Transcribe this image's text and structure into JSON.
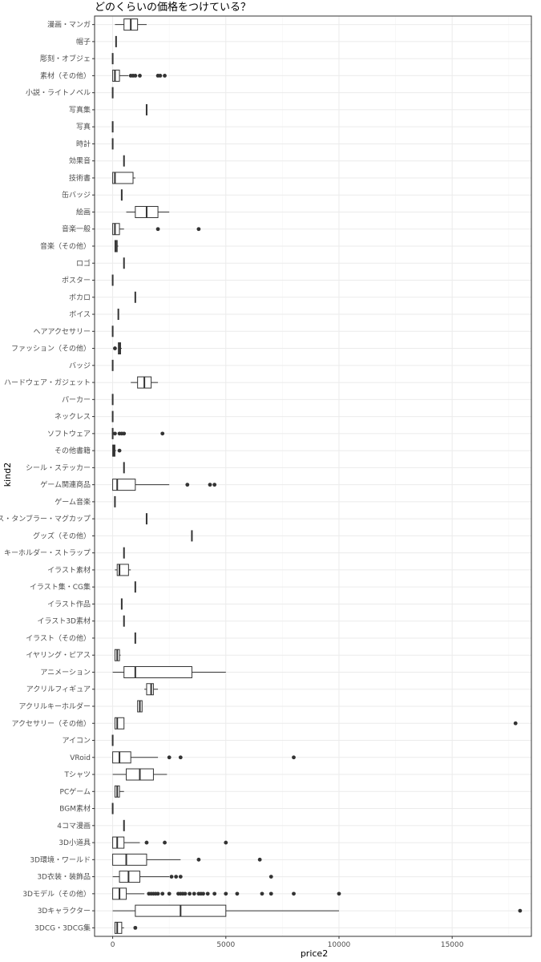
{
  "chart_data": {
    "type": "boxplot",
    "title": "どのくらいの価格をつけている？",
    "xlabel": "price2",
    "ylabel": "kind2",
    "xlim": [
      -800,
      18500
    ],
    "x_ticks": [
      0,
      5000,
      10000,
      15000
    ],
    "grid": true,
    "theme": "bw",
    "colors": {
      "box_fill": "#ffffff",
      "box_line": "#333333",
      "outlier": "#333333",
      "grid_major": "#ebebeb",
      "grid_minor": "#f5f5f5",
      "panel_border": "#333333"
    },
    "categories": [
      {
        "label": "漫画・マンガ",
        "min": 100,
        "q1": 500,
        "median": 800,
        "q3": 1100,
        "max": 1500,
        "outliers": []
      },
      {
        "label": "帽子",
        "min": 150,
        "q1": 150,
        "median": 150,
        "q3": 150,
        "max": 150,
        "outliers": []
      },
      {
        "label": "彫刻・オブジェ",
        "min": 0,
        "q1": 0,
        "median": 0,
        "q3": 0,
        "max": 0,
        "outliers": []
      },
      {
        "label": "素材（その他）",
        "min": 0,
        "q1": 0,
        "median": 100,
        "q3": 300,
        "max": 700,
        "outliers": [
          800,
          900,
          1000,
          1200,
          2000,
          2100,
          2300
        ]
      },
      {
        "label": "小説・ライトノベル",
        "min": 0,
        "q1": 0,
        "median": 0,
        "q3": 0,
        "max": 0,
        "outliers": []
      },
      {
        "label": "写真集",
        "min": 1500,
        "q1": 1500,
        "median": 1500,
        "q3": 1500,
        "max": 1500,
        "outliers": []
      },
      {
        "label": "写真",
        "min": 0,
        "q1": 0,
        "median": 0,
        "q3": 0,
        "max": 0,
        "outliers": []
      },
      {
        "label": "時計",
        "min": 0,
        "q1": 0,
        "median": 0,
        "q3": 0,
        "max": 0,
        "outliers": []
      },
      {
        "label": "効果音",
        "min": 500,
        "q1": 500,
        "median": 500,
        "q3": 500,
        "max": 500,
        "outliers": []
      },
      {
        "label": "技術書",
        "min": 0,
        "q1": 0,
        "median": 100,
        "q3": 900,
        "max": 1000,
        "outliers": []
      },
      {
        "label": "缶バッジ",
        "min": 400,
        "q1": 400,
        "median": 400,
        "q3": 400,
        "max": 400,
        "outliers": []
      },
      {
        "label": "絵画",
        "min": 600,
        "q1": 1000,
        "median": 1500,
        "q3": 2000,
        "max": 2500,
        "outliers": []
      },
      {
        "label": "音楽一般",
        "min": 0,
        "q1": 0,
        "median": 100,
        "q3": 300,
        "max": 500,
        "outliers": [
          2000,
          3800
        ]
      },
      {
        "label": "音楽（その他）",
        "min": 100,
        "q1": 100,
        "median": 150,
        "q3": 200,
        "max": 250,
        "outliers": []
      },
      {
        "label": "ロゴ",
        "min": 500,
        "q1": 500,
        "median": 500,
        "q3": 500,
        "max": 500,
        "outliers": []
      },
      {
        "label": "ポスター",
        "min": 0,
        "q1": 0,
        "median": 0,
        "q3": 0,
        "max": 0,
        "outliers": []
      },
      {
        "label": "ボカロ",
        "min": 1000,
        "q1": 1000,
        "median": 1000,
        "q3": 1000,
        "max": 1000,
        "outliers": []
      },
      {
        "label": "ボイス",
        "min": 250,
        "q1": 250,
        "median": 250,
        "q3": 250,
        "max": 250,
        "outliers": []
      },
      {
        "label": "ヘアアクセサリー",
        "min": 0,
        "q1": 0,
        "median": 0,
        "q3": 0,
        "max": 0,
        "outliers": []
      },
      {
        "label": "ファッション（その他）",
        "min": 250,
        "q1": 250,
        "median": 300,
        "q3": 350,
        "max": 400,
        "outliers": [
          100
        ]
      },
      {
        "label": "バッジ",
        "min": 0,
        "q1": 0,
        "median": 0,
        "q3": 0,
        "max": 0,
        "outliers": []
      },
      {
        "label": "ハードウェア・ガジェット",
        "min": 800,
        "q1": 1100,
        "median": 1400,
        "q3": 1700,
        "max": 2000,
        "outliers": []
      },
      {
        "label": "パーカー",
        "min": 0,
        "q1": 0,
        "median": 0,
        "q3": 0,
        "max": 0,
        "outliers": []
      },
      {
        "label": "ネックレス",
        "min": 0,
        "q1": 0,
        "median": 0,
        "q3": 0,
        "max": 0,
        "outliers": []
      },
      {
        "label": "ソフトウェア",
        "min": 0,
        "q1": 0,
        "median": 0,
        "q3": 0,
        "max": 0,
        "outliers": [
          100,
          300,
          400,
          500,
          2200
        ]
      },
      {
        "label": "その他書籍",
        "min": 0,
        "q1": 0,
        "median": 50,
        "q3": 100,
        "max": 150,
        "outliers": [
          300
        ]
      },
      {
        "label": "シール・ステッカー",
        "min": 500,
        "q1": 500,
        "median": 500,
        "q3": 500,
        "max": 500,
        "outliers": []
      },
      {
        "label": "ゲーム関連商品",
        "min": 0,
        "q1": 0,
        "median": 200,
        "q3": 1000,
        "max": 2500,
        "outliers": [
          3300,
          4300,
          4500
        ]
      },
      {
        "label": "ゲーム音楽",
        "min": 100,
        "q1": 100,
        "median": 100,
        "q3": 100,
        "max": 100,
        "outliers": []
      },
      {
        "label": "グラス・タンブラー・マグカップ",
        "min": 1500,
        "q1": 1500,
        "median": 1500,
        "q3": 1500,
        "max": 1500,
        "outliers": []
      },
      {
        "label": "グッズ（その他）",
        "min": 3500,
        "q1": 3500,
        "median": 3500,
        "q3": 3500,
        "max": 3500,
        "outliers": []
      },
      {
        "label": "キーホルダー・ストラップ",
        "min": 500,
        "q1": 500,
        "median": 500,
        "q3": 500,
        "max": 500,
        "outliers": []
      },
      {
        "label": "イラスト素材",
        "min": 100,
        "q1": 200,
        "median": 300,
        "q3": 700,
        "max": 800,
        "outliers": []
      },
      {
        "label": "イラスト集・CG集",
        "min": 1000,
        "q1": 1000,
        "median": 1000,
        "q3": 1000,
        "max": 1000,
        "outliers": []
      },
      {
        "label": "イラスト作品",
        "min": 400,
        "q1": 400,
        "median": 400,
        "q3": 400,
        "max": 400,
        "outliers": []
      },
      {
        "label": "イラスト3D素材",
        "min": 500,
        "q1": 500,
        "median": 500,
        "q3": 500,
        "max": 500,
        "outliers": []
      },
      {
        "label": "イラスト（その他）",
        "min": 1000,
        "q1": 1000,
        "median": 1000,
        "q3": 1000,
        "max": 1000,
        "outliers": []
      },
      {
        "label": "イヤリング・ピアス",
        "min": 100,
        "q1": 100,
        "median": 200,
        "q3": 300,
        "max": 350,
        "outliers": []
      },
      {
        "label": "アニメーション",
        "min": 0,
        "q1": 500,
        "median": 1000,
        "q3": 3500,
        "max": 5000,
        "outliers": []
      },
      {
        "label": "アクリルフィギュア",
        "min": 1400,
        "q1": 1500,
        "median": 1700,
        "q3": 1800,
        "max": 2000,
        "outliers": []
      },
      {
        "label": "アクリルキーホルダー",
        "min": 1100,
        "q1": 1100,
        "median": 1200,
        "q3": 1300,
        "max": 1300,
        "outliers": []
      },
      {
        "label": "アクセサリー（その他）",
        "min": 100,
        "q1": 100,
        "median": 200,
        "q3": 500,
        "max": 500,
        "outliers": [
          17800
        ]
      },
      {
        "label": "アイコン",
        "min": 0,
        "q1": 0,
        "median": 0,
        "q3": 0,
        "max": 0,
        "outliers": []
      },
      {
        "label": "VRoid",
        "min": 0,
        "q1": 0,
        "median": 300,
        "q3": 800,
        "max": 2000,
        "outliers": [
          2500,
          3000,
          8000
        ]
      },
      {
        "label": "Tシャツ",
        "min": 0,
        "q1": 600,
        "median": 1200,
        "q3": 1800,
        "max": 2400,
        "outliers": []
      },
      {
        "label": "PCゲーム",
        "min": 100,
        "q1": 100,
        "median": 200,
        "q3": 300,
        "max": 500,
        "outliers": []
      },
      {
        "label": "BGM素材",
        "min": 0,
        "q1": 0,
        "median": 0,
        "q3": 0,
        "max": 0,
        "outliers": []
      },
      {
        "label": "4コマ漫画",
        "min": 500,
        "q1": 500,
        "median": 500,
        "q3": 500,
        "max": 500,
        "outliers": []
      },
      {
        "label": "3D小道具",
        "min": 0,
        "q1": 0,
        "median": 200,
        "q3": 500,
        "max": 1200,
        "outliers": [
          1500,
          2300,
          5000
        ]
      },
      {
        "label": "3D環境・ワールド",
        "min": 0,
        "q1": 0,
        "median": 600,
        "q3": 1500,
        "max": 3000,
        "outliers": [
          3800,
          6500
        ]
      },
      {
        "label": "3D衣装・装飾品",
        "min": 0,
        "q1": 300,
        "median": 700,
        "q3": 1200,
        "max": 2500,
        "outliers": [
          2600,
          2800,
          3000,
          7000
        ]
      },
      {
        "label": "3Dモデル（その他）",
        "min": 0,
        "q1": 0,
        "median": 300,
        "q3": 600,
        "max": 1400,
        "outliers": [
          1600,
          1700,
          1800,
          1900,
          2000,
          2200,
          2500,
          2900,
          3000,
          3100,
          3200,
          3400,
          3600,
          3800,
          3900,
          4000,
          4200,
          4500,
          5000,
          5500,
          6600,
          7000,
          8000,
          10000
        ]
      },
      {
        "label": "3Dキャラクター",
        "min": 0,
        "q1": 1000,
        "median": 3000,
        "q3": 5000,
        "max": 10000,
        "outliers": [
          18000
        ]
      },
      {
        "label": "3DCG・3DCG集",
        "min": 100,
        "q1": 100,
        "median": 200,
        "q3": 400,
        "max": 500,
        "outliers": [
          1000
        ]
      }
    ]
  }
}
